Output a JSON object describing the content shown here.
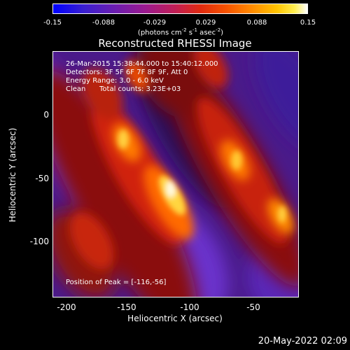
{
  "colorbar": {
    "ticks": [
      "-0.15",
      "-0.088",
      "-0.029",
      "0.029",
      "0.088",
      "0.15"
    ],
    "units_prefix": "(photons cm",
    "units_exp1": "-2",
    "units_mid": " s",
    "units_exp2": "-1",
    "units_mid2": " asec",
    "units_exp3": "-2",
    "units_suffix": ")"
  },
  "title": "Reconstructed RHESSI Image",
  "info": {
    "time_range": "26-Mar-2015 15:38:44.000 to 15:40:12.000",
    "detectors": "Detectors: 3F 5F 6F 7F 8F 9F, Att 0",
    "energy": "Energy Range: 3.0 - 6.0 keV",
    "method": "Clean",
    "counts": "Total counts: 3.23E+03",
    "peak": "Position of Peak = [-116,-56]"
  },
  "axes": {
    "xlabel": "Heliocentric X (arcsec)",
    "ylabel": "Heliocentric Y (arcsec)",
    "xticks": [
      "-200",
      "-150",
      "-100",
      "-50"
    ],
    "yticks": [
      "0",
      "-50",
      "-100"
    ]
  },
  "datestamp": "20-May-2022 02:09"
}
